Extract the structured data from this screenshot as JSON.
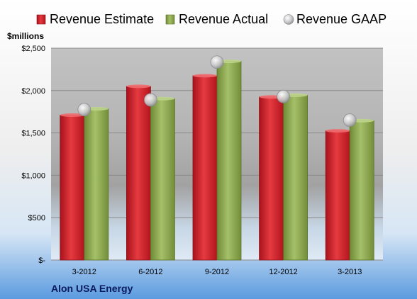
{
  "chart_data": {
    "type": "bar",
    "unit_label": "$millions",
    "company": "Alon USA Energy",
    "categories": [
      "3-2012",
      "6-2012",
      "9-2012",
      "12-2012",
      "3-2013"
    ],
    "series": [
      {
        "name": "Revenue Estimate",
        "kind": "bar",
        "color": "#d11f2a",
        "values": [
          1710,
          2050,
          2175,
          1925,
          1525
        ]
      },
      {
        "name": "Revenue Actual",
        "kind": "bar",
        "color": "#8faa4e",
        "values": [
          1785,
          1905,
          2345,
          1945,
          1645
        ]
      },
      {
        "name": "Revenue GAAP",
        "kind": "marker",
        "color": "#c9c9cc",
        "values": [
          1775,
          1890,
          2335,
          1930,
          1650
        ]
      }
    ],
    "ylim": [
      0,
      2500
    ],
    "yticks": [
      0,
      500,
      1000,
      1500,
      2000,
      2500
    ],
    "ytick_labels": [
      "$-",
      "$500",
      "$1,000",
      "$1,500",
      "$2,000",
      "$2,500"
    ],
    "grid": true,
    "legend_position": "top"
  }
}
